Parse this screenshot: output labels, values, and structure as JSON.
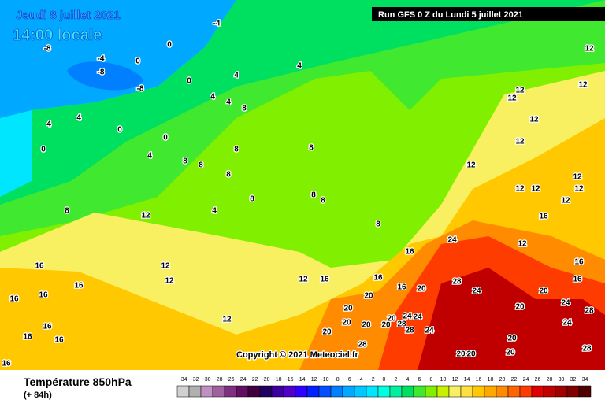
{
  "header": {
    "date": "Jeudi 8 juillet 2021",
    "time": "14:00 locale",
    "run": "Run GFS 0 Z du Lundi 5 juillet 2021"
  },
  "footer": {
    "title": "Température 850hPa",
    "lead": "(+ 84h)",
    "copyright": "Copyright © 2021 Meteociel.fr"
  },
  "scale": {
    "ticks": [
      -34,
      -32,
      -30,
      -28,
      -26,
      -24,
      -22,
      -20,
      -18,
      -16,
      -14,
      -12,
      -10,
      -8,
      -6,
      -4,
      -2,
      0,
      2,
      4,
      6,
      8,
      10,
      12,
      14,
      16,
      18,
      20,
      22,
      24,
      26,
      28,
      30,
      32,
      34
    ],
    "colors": [
      "#d0d0d0",
      "#b0b0b0",
      "#c090c0",
      "#a060a0",
      "#803080",
      "#601060",
      "#400040",
      "#200060",
      "#3c00a0",
      "#5000c8",
      "#3000ff",
      "#0020ff",
      "#0050ff",
      "#0080ff",
      "#00a8ff",
      "#00c8ff",
      "#00e6ff",
      "#00ffe0",
      "#00f0a0",
      "#00e060",
      "#40e830",
      "#80f000",
      "#c8f000",
      "#f8f060",
      "#ffe040",
      "#ffc800",
      "#ffa800",
      "#ff8c00",
      "#ff6400",
      "#ff3c00",
      "#e00000",
      "#c00000",
      "#a00000",
      "#800000",
      "#500000"
    ]
  },
  "contour_labels": [
    -4,
    -8,
    -4,
    0,
    0,
    -8,
    -8,
    0,
    4,
    4,
    4,
    4,
    8,
    4,
    4,
    0,
    0,
    0,
    4,
    8,
    8,
    8,
    8,
    8,
    8,
    4,
    8,
    12,
    12,
    12,
    16,
    16,
    16,
    16,
    16,
    16,
    16,
    16,
    12,
    12,
    16,
    16,
    16,
    16,
    20,
    20,
    20,
    20,
    20,
    20,
    20,
    28,
    24,
    24,
    28,
    24,
    20,
    28,
    24,
    28,
    24,
    20,
    20,
    20,
    20,
    24,
    24,
    28,
    28,
    20,
    20,
    16,
    16,
    12,
    16,
    12,
    12,
    12,
    12,
    12,
    12,
    12,
    12,
    12,
    12,
    12,
    12,
    8,
    8,
    8
  ]
}
